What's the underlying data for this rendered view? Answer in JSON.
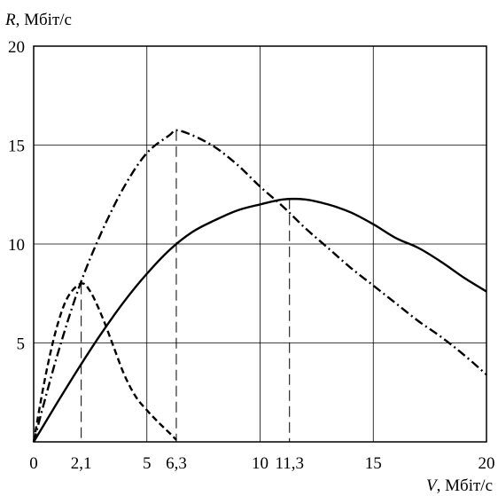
{
  "chart_data": {
    "type": "line",
    "title": "",
    "xlabel_var": "V",
    "xlabel_unit": ", Мбіт/с",
    "ylabel_var": "R",
    "ylabel_unit": ", Мбіт/с",
    "xlim": [
      0,
      20
    ],
    "ylim": [
      0,
      20
    ],
    "x_ticks": [
      {
        "value": 0,
        "label": "0"
      },
      {
        "value": 2.1,
        "label": "2,1"
      },
      {
        "value": 5,
        "label": "5"
      },
      {
        "value": 6.3,
        "label": "6,3"
      },
      {
        "value": 10,
        "label": "10"
      },
      {
        "value": 11.3,
        "label": "11,3"
      },
      {
        "value": 15,
        "label": "15"
      },
      {
        "value": 20,
        "label": "20"
      }
    ],
    "y_ticks": [
      {
        "value": 5,
        "label": "5"
      },
      {
        "value": 10,
        "label": "10"
      },
      {
        "value": 15,
        "label": "15"
      },
      {
        "value": 20,
        "label": "20"
      }
    ],
    "grid": true,
    "vertical_markers": [
      {
        "x": 2.1,
        "y": 8.0
      },
      {
        "x": 6.3,
        "y": 15.75
      },
      {
        "x": 11.3,
        "y": 12.3
      }
    ],
    "series": [
      {
        "style": "solid",
        "x": [
          0,
          1,
          2,
          3,
          4,
          5,
          6,
          7,
          8,
          9,
          10,
          11,
          12,
          13,
          14,
          15,
          16,
          17,
          18,
          19,
          20
        ],
        "y": [
          0,
          1.9,
          3.75,
          5.5,
          7.1,
          8.5,
          9.7,
          10.6,
          11.2,
          11.7,
          12.0,
          12.25,
          12.25,
          12.0,
          11.6,
          11.0,
          10.3,
          9.8,
          9.1,
          8.3,
          7.6
        ]
      },
      {
        "style": "dashed",
        "x": [
          0,
          0.5,
          1,
          1.5,
          2.1,
          2.5,
          3,
          3.5,
          4,
          4.5,
          5,
          5.5,
          6,
          6.3
        ],
        "y": [
          0,
          3.2,
          5.7,
          7.3,
          8.0,
          7.6,
          6.4,
          4.9,
          3.4,
          2.3,
          1.6,
          1.0,
          0.45,
          0.1
        ]
      },
      {
        "style": "dash-dot",
        "x": [
          0,
          1,
          2,
          3,
          4,
          5,
          6,
          6.3,
          7,
          8,
          9,
          10,
          11,
          12,
          13,
          14,
          15,
          16,
          17,
          18,
          19,
          20
        ],
        "y": [
          0,
          4.2,
          7.8,
          10.6,
          12.9,
          14.6,
          15.5,
          15.75,
          15.5,
          14.9,
          14.0,
          12.9,
          11.9,
          10.8,
          9.8,
          8.8,
          7.9,
          7.0,
          6.1,
          5.3,
          4.4,
          3.4
        ]
      }
    ]
  }
}
